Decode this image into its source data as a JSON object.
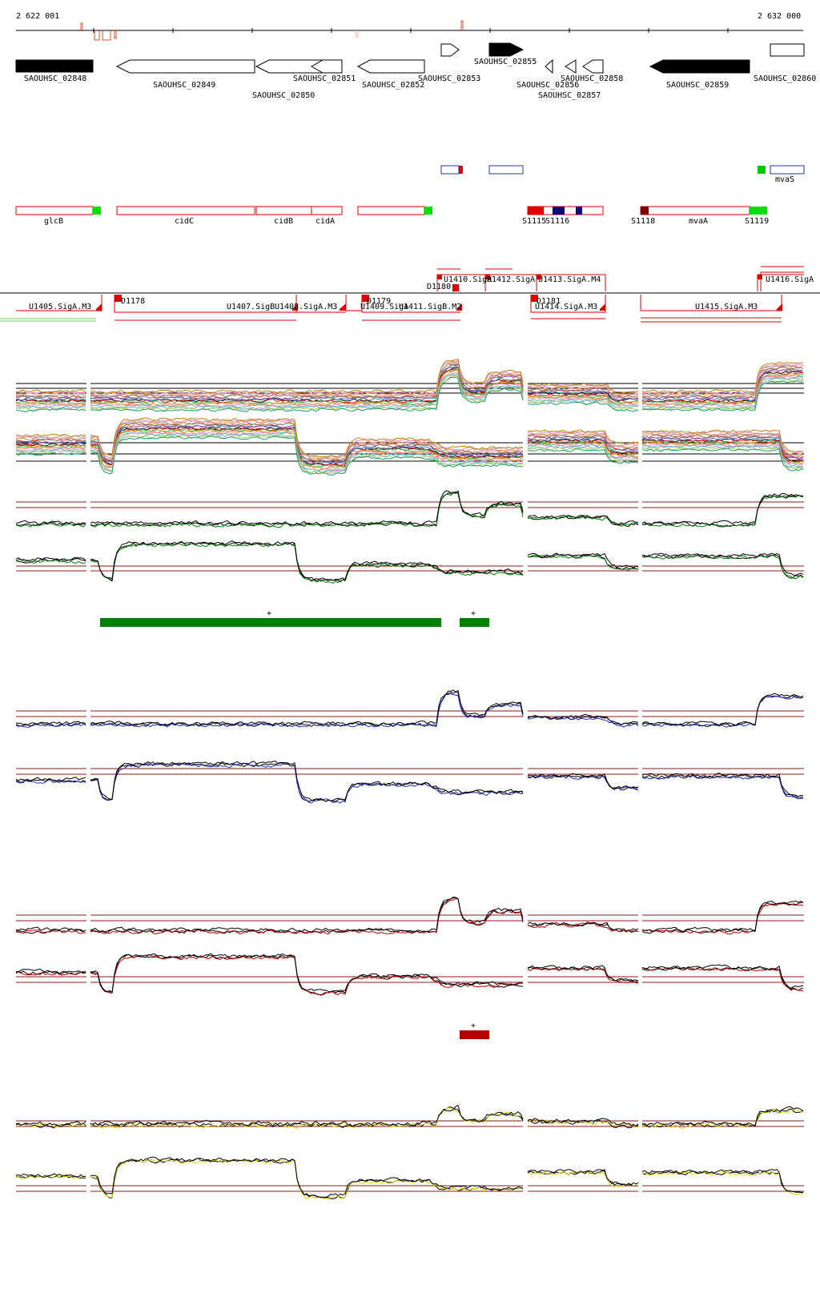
{
  "ruler": {
    "start_label": "2 622 001",
    "end_label": "2 632 000"
  },
  "genes": [
    {
      "label": "SAOUHSC_02848",
      "strand": "+",
      "filled": true
    },
    {
      "label": "SAOUHSC_02849",
      "strand": "-",
      "filled": false
    },
    {
      "label": "SAOUHSC_02850",
      "strand": "-",
      "filled": false
    },
    {
      "label": "SAOUHSC_02851",
      "strand": "-",
      "filled": false
    },
    {
      "label": "SAOUHSC_02852",
      "strand": "-",
      "filled": false
    },
    {
      "label": "SAOUHSC_02853",
      "strand": "+",
      "filled": false
    },
    {
      "label": "SAOUHSC_02855",
      "strand": "+",
      "filled": true
    },
    {
      "label": "SAOUHSC_02856",
      "strand": "-",
      "filled": false
    },
    {
      "label": "SAOUHSC_02857",
      "strand": "-",
      "filled": false
    },
    {
      "label": "SAOUHSC_02858",
      "strand": "-",
      "filled": false
    },
    {
      "label": "SAOUHSC_02859",
      "strand": "-",
      "filled": true
    },
    {
      "label": "SAOUHSC_02860",
      "strand": "+",
      "filled": false
    }
  ],
  "annotations": [
    "glcB",
    "cidC",
    "cidB",
    "cidA",
    "S1115",
    "S1116",
    "S1118",
    "mvaA",
    "S1119",
    "mvaS"
  ],
  "segments": {
    "top": [
      "U1410.SigA",
      "U1412.SigA",
      "U1413.SigA.M4",
      "U1416.SigA",
      "D1180"
    ],
    "bottom": [
      "U1405.SigA.M3",
      "D1178",
      "U1407.SigB",
      "U1408.SigA.M3",
      "D1179",
      "U1409.SigA",
      "U1411.SigB.M2",
      "D1181",
      "U1414.SigA.M3",
      "U1415.SigA.M3"
    ]
  },
  "markers": [
    "+",
    "+",
    "+"
  ],
  "colors": {
    "green": "#008000",
    "blue": "#1f2fbf",
    "red": "#c00000",
    "yellow": "#d8d800",
    "gene_outline": "#d00000",
    "threshold": "#8b1a1a"
  }
}
